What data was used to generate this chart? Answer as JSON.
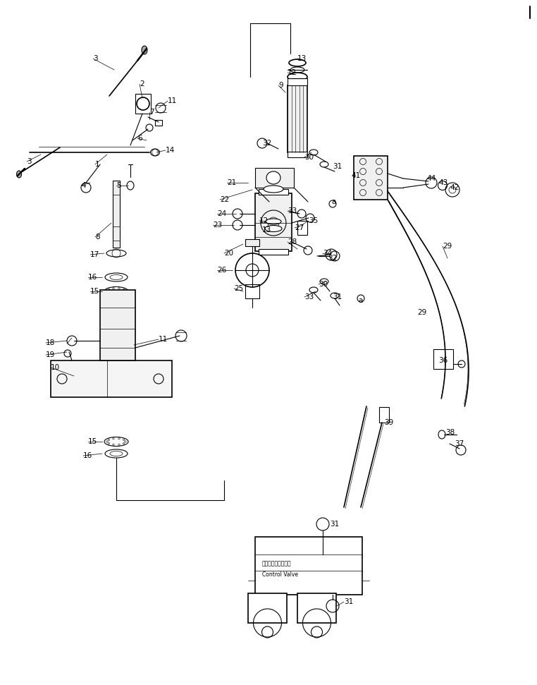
{
  "title": "",
  "bg_color": "#ffffff",
  "line_color": "#000000",
  "fig_width": 7.62,
  "fig_height": 9.71,
  "dpi": 100,
  "control_valve_label_jp": "コントロールバルブ",
  "control_valve_label_en": "Control Valve"
}
